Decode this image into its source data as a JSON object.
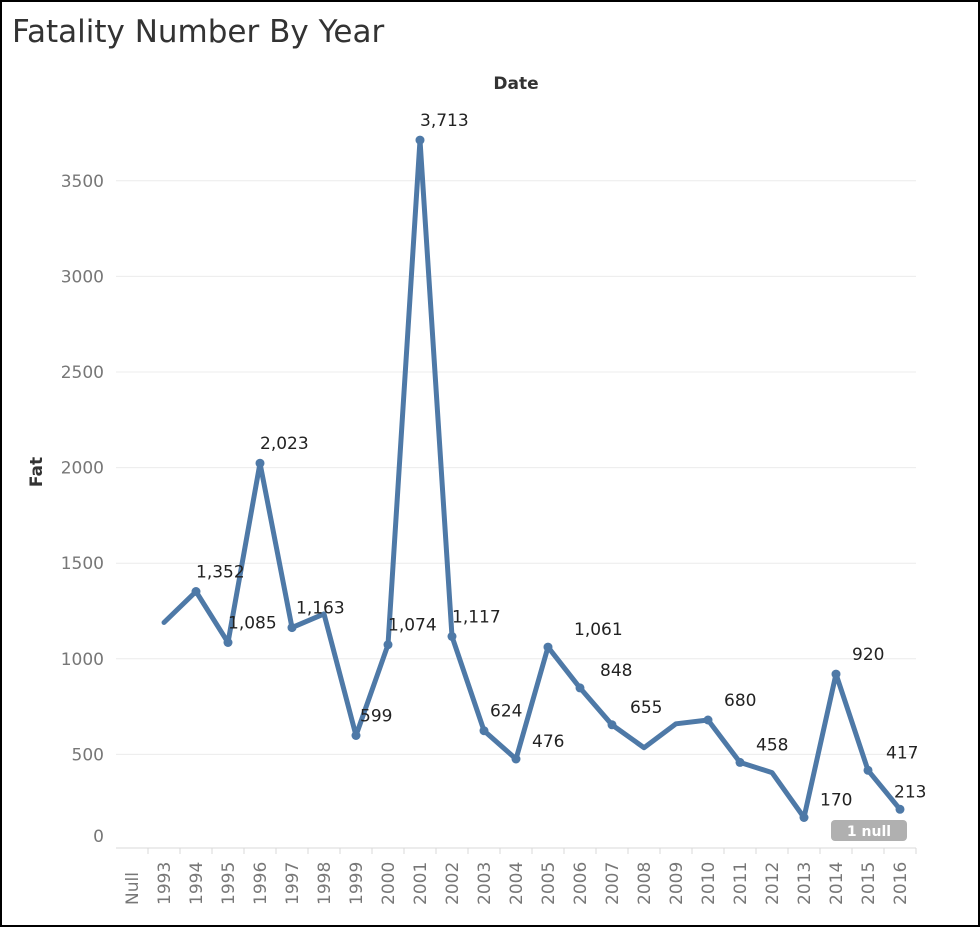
{
  "chart_data": {
    "type": "line",
    "title": "Fatality Number By Year",
    "xlabel": "Date",
    "ylabel": "Fat",
    "categories": [
      "Null",
      "1993",
      "1994",
      "1995",
      "1996",
      "1997",
      "1998",
      "1999",
      "2000",
      "2001",
      "2002",
      "2003",
      "2004",
      "2005",
      "2006",
      "2007",
      "2008",
      "2009",
      "2010",
      "2011",
      "2012",
      "2013",
      "2014",
      "2015",
      "2016"
    ],
    "values": [
      null,
      1190,
      1352,
      1085,
      2023,
      1163,
      1235,
      599,
      1074,
      3713,
      1117,
      624,
      476,
      1061,
      848,
      655,
      535,
      660,
      680,
      458,
      405,
      170,
      920,
      417,
      213
    ],
    "data_labels": [
      null,
      null,
      "1,352",
      "1,085",
      "2,023",
      "1,163",
      null,
      "599",
      "1,074",
      "3,713",
      "1,117",
      "624",
      "476",
      "1,061",
      "848",
      "655",
      null,
      null,
      "680",
      "458",
      null,
      "170",
      "920",
      "417",
      "213"
    ],
    "marked": [
      false,
      false,
      true,
      true,
      true,
      true,
      false,
      true,
      true,
      true,
      true,
      true,
      true,
      true,
      true,
      true,
      false,
      false,
      true,
      true,
      false,
      true,
      true,
      true,
      true
    ],
    "ylim": [
      0,
      3800
    ],
    "yticks": [
      0,
      500,
      1000,
      1500,
      2000,
      2500,
      3000,
      3500
    ],
    "grid": true,
    "line_color": "#4e79a7",
    "null_indicator": "1 null"
  }
}
